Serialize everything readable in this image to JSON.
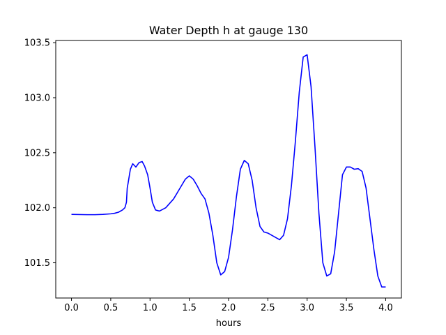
{
  "chart_data": {
    "type": "line",
    "title": "Water Depth h at gauge 130",
    "xlabel": "hours",
    "ylabel": "",
    "xlim": [
      -0.2,
      4.2
    ],
    "ylim": [
      101.18,
      103.52
    ],
    "grid": false,
    "legend": "none",
    "xticks": [
      0.0,
      0.5,
      1.0,
      1.5,
      2.0,
      2.5,
      3.0,
      3.5,
      4.0
    ],
    "xtick_labels": [
      "0.0",
      "0.5",
      "1.0",
      "1.5",
      "2.0",
      "2.5",
      "3.0",
      "3.5",
      "4.0"
    ],
    "yticks": [
      101.5,
      102.0,
      102.5,
      103.0,
      103.5
    ],
    "ytick_labels": [
      "101.5",
      "102.0",
      "102.5",
      "103.0",
      "103.5"
    ],
    "series": [
      {
        "name": "",
        "color": "#0000ff",
        "x": [
          0.0,
          0.2,
          0.3,
          0.4,
          0.5,
          0.55,
          0.6,
          0.65,
          0.68,
          0.7,
          0.71,
          0.72,
          0.75,
          0.78,
          0.82,
          0.86,
          0.9,
          0.93,
          0.97,
          1.0,
          1.03,
          1.07,
          1.12,
          1.2,
          1.3,
          1.35,
          1.4,
          1.45,
          1.5,
          1.55,
          1.6,
          1.65,
          1.7,
          1.75,
          1.8,
          1.85,
          1.9,
          1.95,
          2.0,
          2.05,
          2.1,
          2.15,
          2.2,
          2.25,
          2.3,
          2.35,
          2.4,
          2.45,
          2.5,
          2.6,
          2.65,
          2.7,
          2.75,
          2.8,
          2.85,
          2.9,
          2.95,
          3.0,
          3.05,
          3.1,
          3.15,
          3.2,
          3.25,
          3.3,
          3.35,
          3.4,
          3.45,
          3.5,
          3.55,
          3.6,
          3.65,
          3.7,
          3.75,
          3.8,
          3.85,
          3.9,
          3.95,
          4.0
        ],
        "y": [
          101.94,
          101.937,
          101.937,
          101.94,
          101.945,
          101.95,
          101.96,
          101.98,
          102.0,
          102.05,
          102.18,
          102.22,
          102.35,
          102.4,
          102.37,
          102.41,
          102.42,
          102.38,
          102.3,
          102.18,
          102.05,
          101.98,
          101.97,
          102.0,
          102.08,
          102.14,
          102.2,
          102.26,
          102.29,
          102.26,
          102.2,
          102.13,
          102.08,
          101.95,
          101.75,
          101.5,
          101.39,
          101.42,
          101.55,
          101.8,
          102.1,
          102.35,
          102.43,
          102.4,
          102.25,
          102.0,
          101.83,
          101.78,
          101.77,
          101.73,
          101.71,
          101.75,
          101.9,
          102.2,
          102.6,
          103.05,
          103.37,
          103.39,
          103.1,
          102.55,
          101.95,
          101.5,
          101.38,
          101.4,
          101.6,
          101.95,
          102.3,
          102.37,
          102.37,
          102.35,
          102.355,
          102.33,
          102.18,
          101.9,
          101.62,
          101.38,
          101.28,
          101.28
        ]
      }
    ]
  }
}
